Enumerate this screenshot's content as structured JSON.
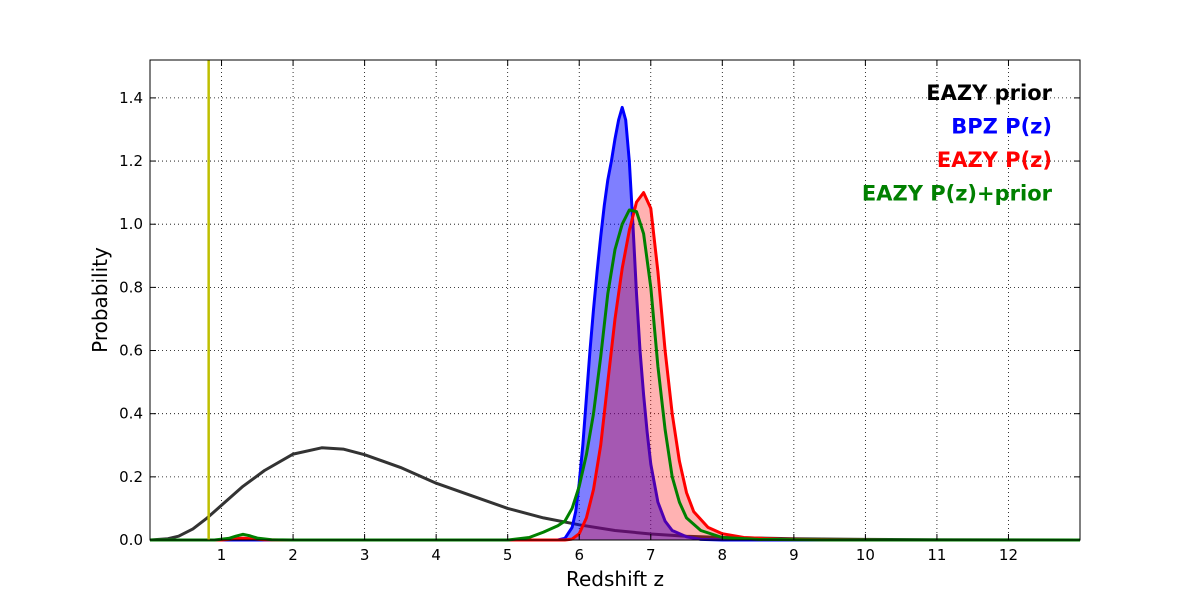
{
  "chart_data": {
    "type": "line",
    "title": "",
    "xlabel": "Redshift z",
    "ylabel": "Probability",
    "xlim": [
      0,
      13
    ],
    "ylim": [
      0,
      1.52
    ],
    "x_ticks": [
      1,
      2,
      3,
      4,
      5,
      6,
      7,
      8,
      9,
      10,
      11,
      12
    ],
    "y_ticks": [
      0.0,
      0.2,
      0.4,
      0.6,
      0.8,
      1.0,
      1.2,
      1.4
    ],
    "grid": true,
    "legend_position": "top-right",
    "reference_line": {
      "x": 0.82,
      "color": "#bfbf00"
    },
    "series": [
      {
        "name": "EAZY prior",
        "color": "#333333",
        "legend_color": "#000000",
        "fill": false,
        "points": [
          [
            0,
            0
          ],
          [
            0.25,
            0.004
          ],
          [
            0.4,
            0.012
          ],
          [
            0.6,
            0.035
          ],
          [
            0.8,
            0.07
          ],
          [
            1.0,
            0.11
          ],
          [
            1.3,
            0.17
          ],
          [
            1.6,
            0.22
          ],
          [
            2.0,
            0.272
          ],
          [
            2.4,
            0.292
          ],
          [
            2.7,
            0.288
          ],
          [
            3.0,
            0.27
          ],
          [
            3.5,
            0.23
          ],
          [
            4.0,
            0.18
          ],
          [
            4.5,
            0.14
          ],
          [
            5.0,
            0.1
          ],
          [
            5.5,
            0.07
          ],
          [
            6.0,
            0.048
          ],
          [
            6.5,
            0.03
          ],
          [
            7.0,
            0.019
          ],
          [
            7.5,
            0.012
          ],
          [
            8.0,
            0.008
          ],
          [
            9.0,
            0.004
          ],
          [
            10.0,
            0.002
          ],
          [
            11.0,
            0.001
          ],
          [
            13.0,
            0.0
          ]
        ]
      },
      {
        "name": "BPZ P(z)",
        "color": "#0000ff",
        "legend_color": "#0000ff",
        "fill": true,
        "fill_color": "rgba(0,0,255,0.5)",
        "points": [
          [
            0,
            0
          ],
          [
            5.7,
            0
          ],
          [
            5.8,
            0.005
          ],
          [
            5.9,
            0.04
          ],
          [
            5.95,
            0.09
          ],
          [
            6.0,
            0.18
          ],
          [
            6.05,
            0.3
          ],
          [
            6.1,
            0.45
          ],
          [
            6.15,
            0.6
          ],
          [
            6.2,
            0.73
          ],
          [
            6.25,
            0.85
          ],
          [
            6.3,
            0.96
          ],
          [
            6.35,
            1.06
          ],
          [
            6.4,
            1.14
          ],
          [
            6.45,
            1.2
          ],
          [
            6.5,
            1.27
          ],
          [
            6.55,
            1.33
          ],
          [
            6.6,
            1.37
          ],
          [
            6.65,
            1.33
          ],
          [
            6.7,
            1.2
          ],
          [
            6.75,
            1.0
          ],
          [
            6.8,
            0.78
          ],
          [
            6.85,
            0.6
          ],
          [
            6.9,
            0.46
          ],
          [
            6.95,
            0.34
          ],
          [
            7.0,
            0.24
          ],
          [
            7.1,
            0.12
          ],
          [
            7.2,
            0.06
          ],
          [
            7.3,
            0.03
          ],
          [
            7.5,
            0.01
          ],
          [
            7.7,
            0.002
          ],
          [
            8.0,
            0
          ],
          [
            13.0,
            0
          ]
        ]
      },
      {
        "name": "EAZY P(z)",
        "color": "#ff0000",
        "legend_color": "#ff0000",
        "fill": true,
        "fill_color": "rgba(255,0,0,0.3)",
        "points": [
          [
            0,
            0
          ],
          [
            1.0,
            0
          ],
          [
            1.2,
            0.004
          ],
          [
            1.3,
            0.006
          ],
          [
            1.4,
            0.004
          ],
          [
            1.6,
            0.001
          ],
          [
            1.8,
            0
          ],
          [
            5.8,
            0
          ],
          [
            5.9,
            0.003
          ],
          [
            6.0,
            0.02
          ],
          [
            6.1,
            0.07
          ],
          [
            6.2,
            0.16
          ],
          [
            6.3,
            0.3
          ],
          [
            6.4,
            0.5
          ],
          [
            6.5,
            0.7
          ],
          [
            6.6,
            0.86
          ],
          [
            6.7,
            0.98
          ],
          [
            6.8,
            1.07
          ],
          [
            6.9,
            1.1
          ],
          [
            7.0,
            1.05
          ],
          [
            7.1,
            0.85
          ],
          [
            7.2,
            0.6
          ],
          [
            7.3,
            0.4
          ],
          [
            7.4,
            0.25
          ],
          [
            7.5,
            0.15
          ],
          [
            7.6,
            0.09
          ],
          [
            7.8,
            0.04
          ],
          [
            8.0,
            0.02
          ],
          [
            8.3,
            0.008
          ],
          [
            8.8,
            0.003
          ],
          [
            9.5,
            0.001
          ],
          [
            10.5,
            0
          ],
          [
            13.0,
            0
          ]
        ]
      },
      {
        "name": "EAZY P(z)+prior",
        "color": "#008000",
        "legend_color": "#008000",
        "fill": false,
        "points": [
          [
            0,
            0
          ],
          [
            0.9,
            0
          ],
          [
            1.1,
            0.005
          ],
          [
            1.2,
            0.012
          ],
          [
            1.3,
            0.018
          ],
          [
            1.4,
            0.013
          ],
          [
            1.5,
            0.006
          ],
          [
            1.7,
            0.001
          ],
          [
            2.0,
            0
          ],
          [
            5.0,
            0
          ],
          [
            5.3,
            0.008
          ],
          [
            5.5,
            0.025
          ],
          [
            5.7,
            0.045
          ],
          [
            5.8,
            0.06
          ],
          [
            5.9,
            0.1
          ],
          [
            6.0,
            0.17
          ],
          [
            6.1,
            0.27
          ],
          [
            6.2,
            0.4
          ],
          [
            6.3,
            0.58
          ],
          [
            6.4,
            0.78
          ],
          [
            6.5,
            0.92
          ],
          [
            6.6,
            1.0
          ],
          [
            6.7,
            1.045
          ],
          [
            6.8,
            1.04
          ],
          [
            6.9,
            0.97
          ],
          [
            7.0,
            0.8
          ],
          [
            7.1,
            0.55
          ],
          [
            7.2,
            0.35
          ],
          [
            7.3,
            0.2
          ],
          [
            7.4,
            0.12
          ],
          [
            7.5,
            0.07
          ],
          [
            7.7,
            0.03
          ],
          [
            8.0,
            0.008
          ],
          [
            8.5,
            0.002
          ],
          [
            9.5,
            0
          ],
          [
            13.0,
            0
          ]
        ]
      }
    ]
  }
}
